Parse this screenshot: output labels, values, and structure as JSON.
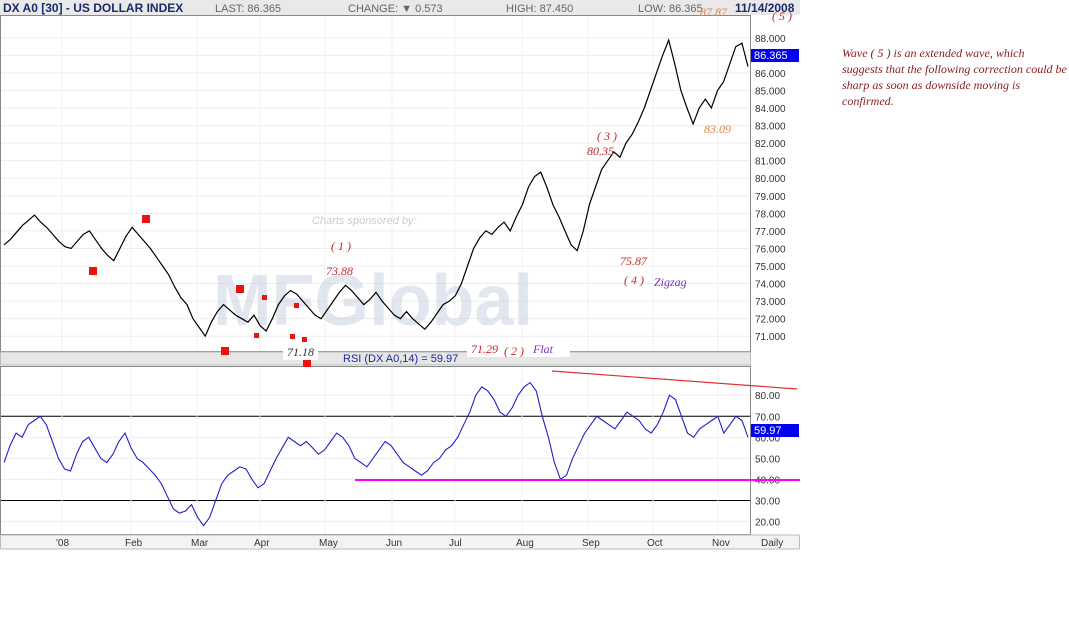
{
  "header": {
    "symbol": "DX A0 [30] - US DOLLAR INDEX",
    "last": "LAST: 86.365",
    "change": "CHANGE: ▼ 0.573",
    "high": "HIGH: 87.450",
    "low": "LOW: 86.365",
    "date": "11/14/2008"
  },
  "sponsor": {
    "text": "Charts sponsored by:",
    "logo_text": "MFGlobal"
  },
  "note": "Wave ( 5 ) is an extended wave, which suggests that the following correction could be sharp as soon as downside moving is confirmed.",
  "colors": {
    "price": "#000000",
    "rsi": "#1f1fcc",
    "wave_red": "#c62828",
    "wave_orange": "#e8834a",
    "pattern": "#7a2bc8",
    "support": "#ff00ff",
    "resist": "#e03030",
    "marker": "#ee1111",
    "last_bg": "#0000ee"
  },
  "chart_data": [
    {
      "type": "line",
      "title": "DX A0 [30] - US DOLLAR INDEX",
      "xlabel": "",
      "ylabel": "",
      "x_ticks": [
        "'08",
        "Feb",
        "Mar",
        "Apr",
        "May",
        "Jun",
        "Jul",
        "Aug",
        "Sep",
        "Oct",
        "Nov",
        "Daily"
      ],
      "y_ticks": [
        "71.000",
        "72.000",
        "73.000",
        "74.000",
        "75.000",
        "76.000",
        "77.000",
        "78.000",
        "79.000",
        "80.000",
        "81.000",
        "82.000",
        "83.000",
        "84.000",
        "85.000",
        "86.000",
        "87.000",
        "88.000"
      ],
      "ylim": [
        70.5,
        88.9
      ],
      "last_value": "86.365",
      "series": [
        {
          "values": [
            76.2,
            76.5,
            76.9,
            77.3,
            77.6,
            77.9,
            77.5,
            77.2,
            76.8,
            76.4,
            76.1,
            76.0,
            76.4,
            76.8,
            77.0,
            76.5,
            76.0,
            75.6,
            75.3,
            76.0,
            76.7,
            77.2,
            76.8,
            76.4,
            76.0,
            75.5,
            75.0,
            74.5,
            73.8,
            73.2,
            72.8,
            72.0,
            71.5,
            71.0,
            71.8,
            72.4,
            72.8,
            72.5,
            72.2,
            72.0,
            71.8,
            72.2,
            71.6,
            71.3,
            72.0,
            72.8,
            73.3,
            73.6,
            73.4,
            73.0,
            72.6,
            72.2,
            72.0,
            72.5,
            73.0,
            73.5,
            73.9,
            73.6,
            73.2,
            72.8,
            73.1,
            73.5,
            73.0,
            72.6,
            72.2,
            72.0,
            72.4,
            72.0,
            71.7,
            71.4,
            71.8,
            72.3,
            72.8,
            73.0,
            73.3,
            74.0,
            75.0,
            76.0,
            76.6,
            77.0,
            76.8,
            77.2,
            77.5,
            77.0,
            77.8,
            78.5,
            79.5,
            80.1,
            80.35,
            79.5,
            78.5,
            77.8,
            77.0,
            76.2,
            75.87,
            77.0,
            78.5,
            79.5,
            80.5,
            81.0,
            81.5,
            81.2,
            82.0,
            82.5,
            83.2,
            84.0,
            85.0,
            86.0,
            87.0,
            87.87,
            86.5,
            85.0,
            84.0,
            83.09,
            84.0,
            84.5,
            84.0,
            85.0,
            85.5,
            86.5,
            87.5,
            87.7,
            86.365
          ]
        }
      ]
    },
    {
      "type": "line",
      "title": "RSI (DX A0,14) = 59.97",
      "y_ticks": [
        "20.00",
        "30.00",
        "40.00",
        "50.00",
        "60.00",
        "70.00",
        "80.00"
      ],
      "ylim": [
        15,
        92
      ],
      "last_value": "59.97",
      "series": [
        {
          "values": [
            48,
            56,
            62,
            60,
            66,
            68,
            70,
            66,
            58,
            50,
            45,
            44,
            52,
            58,
            60,
            55,
            50,
            48,
            52,
            58,
            62,
            55,
            50,
            48,
            45,
            42,
            38,
            32,
            26,
            24,
            25,
            28,
            22,
            18,
            22,
            30,
            38,
            42,
            44,
            46,
            45,
            40,
            36,
            38,
            44,
            50,
            55,
            60,
            58,
            56,
            58,
            55,
            52,
            54,
            58,
            62,
            60,
            56,
            50,
            48,
            46,
            50,
            54,
            58,
            56,
            52,
            48,
            46,
            44,
            42,
            44,
            48,
            50,
            54,
            56,
            60,
            66,
            72,
            80,
            84,
            82,
            78,
            72,
            70,
            74,
            80,
            84,
            86,
            82,
            70,
            60,
            48,
            40,
            42,
            50,
            56,
            62,
            66,
            70,
            68,
            66,
            64,
            68,
            72,
            70,
            68,
            64,
            62,
            66,
            72,
            80,
            78,
            70,
            62,
            60,
            64,
            66,
            68,
            70,
            62,
            66,
            70,
            68,
            60
          ]
        }
      ],
      "reference_lines": [
        30,
        70
      ]
    }
  ],
  "annotations": {
    "w1": "( 1 )",
    "v1": "73.88",
    "w2": "( 2 )",
    "v2": "71.29",
    "flat": "Flat",
    "low1": "71.18",
    "w3": "( 3 )",
    "v3": "80.35",
    "w4": "( 4 )",
    "v4": "75.87",
    "zigzag": "Zigzag",
    "w5": "( 5 )",
    "v5": "87.87",
    "v83": "83.09"
  }
}
